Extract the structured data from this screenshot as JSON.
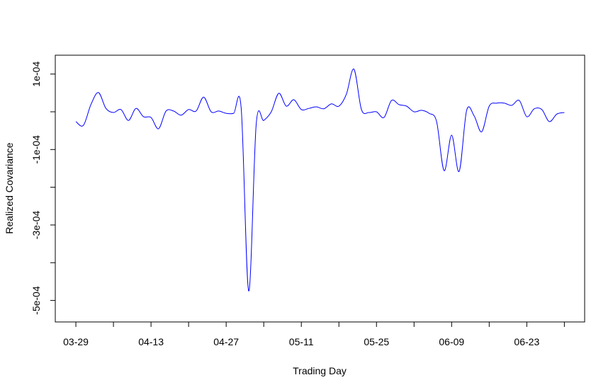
{
  "chart_data": {
    "type": "line",
    "xlabel": "Trading Day",
    "ylabel": "Realized Covariance",
    "x": [
      0,
      1,
      2,
      3,
      4,
      5,
      6,
      7,
      8,
      9,
      10,
      11,
      12,
      13,
      14,
      15,
      16,
      17,
      18,
      19,
      20,
      21,
      22,
      23,
      24,
      25,
      26,
      27,
      28,
      29,
      30,
      31,
      32,
      33,
      34,
      35,
      36,
      37,
      38,
      39,
      40,
      41,
      42,
      43,
      44,
      45,
      46,
      47,
      48,
      49,
      50,
      51,
      52,
      53,
      54,
      55,
      56,
      57,
      58,
      59,
      60,
      61,
      62,
      63,
      64,
      65
    ],
    "series": [
      {
        "color": "#0000ff",
        "values": [
          -2.6e-05,
          -3.6e-05,
          1.9e-05,
          5.1e-05,
          9e-06,
          -2e-06,
          6e-06,
          -2.3e-05,
          9e-06,
          -1.3e-05,
          -1.5e-05,
          -4.5e-05,
          2e-06,
          2e-06,
          -9e-06,
          6e-06,
          2e-06,
          3.9e-05,
          0,
          2e-06,
          -4e-06,
          -4e-06,
          9e-06,
          -0.000475,
          -3.2e-05,
          -2.3e-05,
          0,
          4.9e-05,
          1.5e-05,
          3.2e-05,
          6e-06,
          9e-06,
          1.3e-05,
          8e-06,
          2.1e-05,
          1.5e-05,
          4.7e-05,
          0.000113,
          6e-06,
          -2e-06,
          0,
          -1.5e-05,
          3e-05,
          1.9e-05,
          1.5e-05,
          0,
          4e-06,
          -4e-06,
          -2.6e-05,
          -0.000156,
          -6.2e-05,
          -0.000158,
          4e-06,
          -1.1e-05,
          -5.3e-05,
          1.5e-05,
          2.3e-05,
          2.3e-05,
          1.7e-05,
          3e-05,
          -1.3e-05,
          8e-06,
          6e-06,
          -2.6e-05,
          -6e-06,
          -2e-06
        ]
      }
    ],
    "xlim": [
      -2.74,
      67.7
    ],
    "xticks": [
      {
        "value": 0,
        "label": "03-29"
      },
      {
        "value": 5,
        "label": null
      },
      {
        "value": 10,
        "label": "04-13"
      },
      {
        "value": 15,
        "label": null
      },
      {
        "value": 20,
        "label": "04-27"
      },
      {
        "value": 25,
        "label": null
      },
      {
        "value": 30,
        "label": "05-11"
      },
      {
        "value": 35,
        "label": null
      },
      {
        "value": 40,
        "label": "05-25"
      },
      {
        "value": 45,
        "label": null
      },
      {
        "value": 50,
        "label": "06-09"
      },
      {
        "value": 55,
        "label": null
      },
      {
        "value": 60,
        "label": "06-23"
      },
      {
        "value": 65,
        "label": null
      }
    ],
    "ylim": [
      -0.000557,
      0.00015
    ],
    "yticks": [
      {
        "value": 0.0001,
        "label": "1e-04"
      },
      {
        "value": 0,
        "label": null
      },
      {
        "value": -0.0001,
        "label": "-1e-04"
      },
      {
        "value": -0.0002,
        "label": null
      },
      {
        "value": -0.0003,
        "label": "-3e-04"
      },
      {
        "value": -0.0004,
        "label": null
      },
      {
        "value": -0.0005,
        "label": "-5e-04"
      }
    ]
  }
}
